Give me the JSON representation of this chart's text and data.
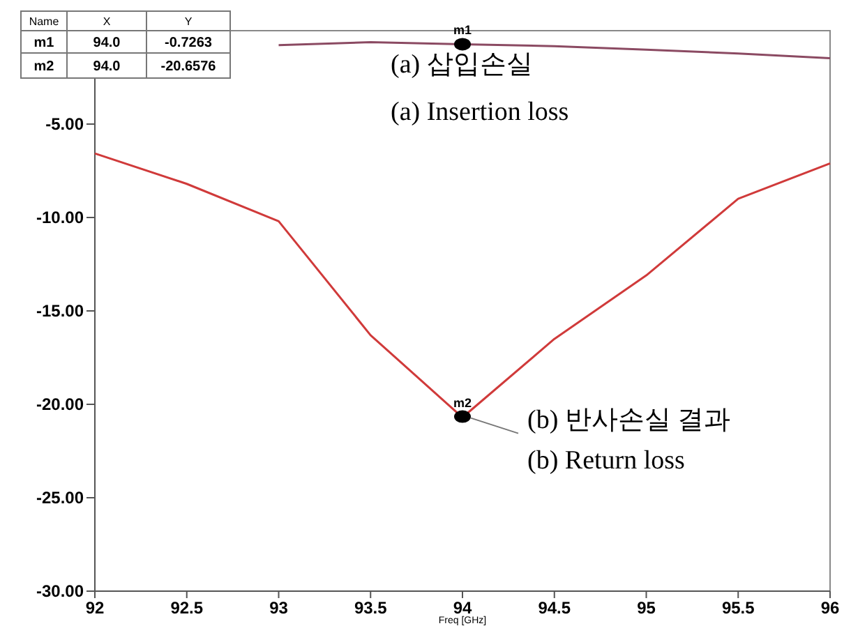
{
  "chart_data": {
    "type": "line",
    "xlabel": "Freq [GHz]",
    "x": [
      92,
      92.5,
      93,
      93.5,
      94,
      94.5,
      95,
      95.5,
      96
    ],
    "series": [
      {
        "color": "#8b4a62",
        "values": [
          null,
          null,
          -0.77,
          -0.62,
          -0.73,
          -0.83,
          -1.02,
          -1.22,
          -1.47
        ]
      },
      {
        "color": "#d03a3a",
        "values": [
          -6.57,
          -8.2,
          -10.2,
          -16.3,
          -20.7,
          -16.5,
          -13.1,
          -9.0,
          -7.1
        ]
      },
      {
        "type": "scatter",
        "name": "m1",
        "color": "#000000",
        "x": [
          94
        ],
        "values": [
          -0.7263
        ]
      },
      {
        "type": "scatter",
        "name": "m2",
        "color": "#000000",
        "x": [
          94
        ],
        "values": [
          -20.6576
        ]
      }
    ],
    "xlim": [
      92,
      96
    ],
    "ylim": [
      -30,
      0
    ],
    "xticks": [
      92,
      92.5,
      93,
      93.5,
      94,
      94.5,
      95,
      95.5,
      96
    ],
    "yticks": [
      {
        "value": -5,
        "label": "-5.00"
      },
      {
        "value": -10,
        "label": "-10.00"
      },
      {
        "value": -15,
        "label": "-15.00"
      },
      {
        "value": -20,
        "label": "-20.00"
      },
      {
        "value": -25,
        "label": "-25.00"
      },
      {
        "value": -30,
        "label": "-30.00"
      }
    ],
    "grid": false,
    "annotations": [
      "Name",
      "X",
      "Y",
      "m1",
      "94.0",
      "-0.7263",
      "m2",
      "94.0",
      "-20.6576",
      "(a) 삽입손실",
      "(a) Insertion loss",
      {
        "text": "(b) 반사손실 결과",
        "x": 94,
        "y": -20.6576
      },
      "(b) Return loss"
    ]
  }
}
